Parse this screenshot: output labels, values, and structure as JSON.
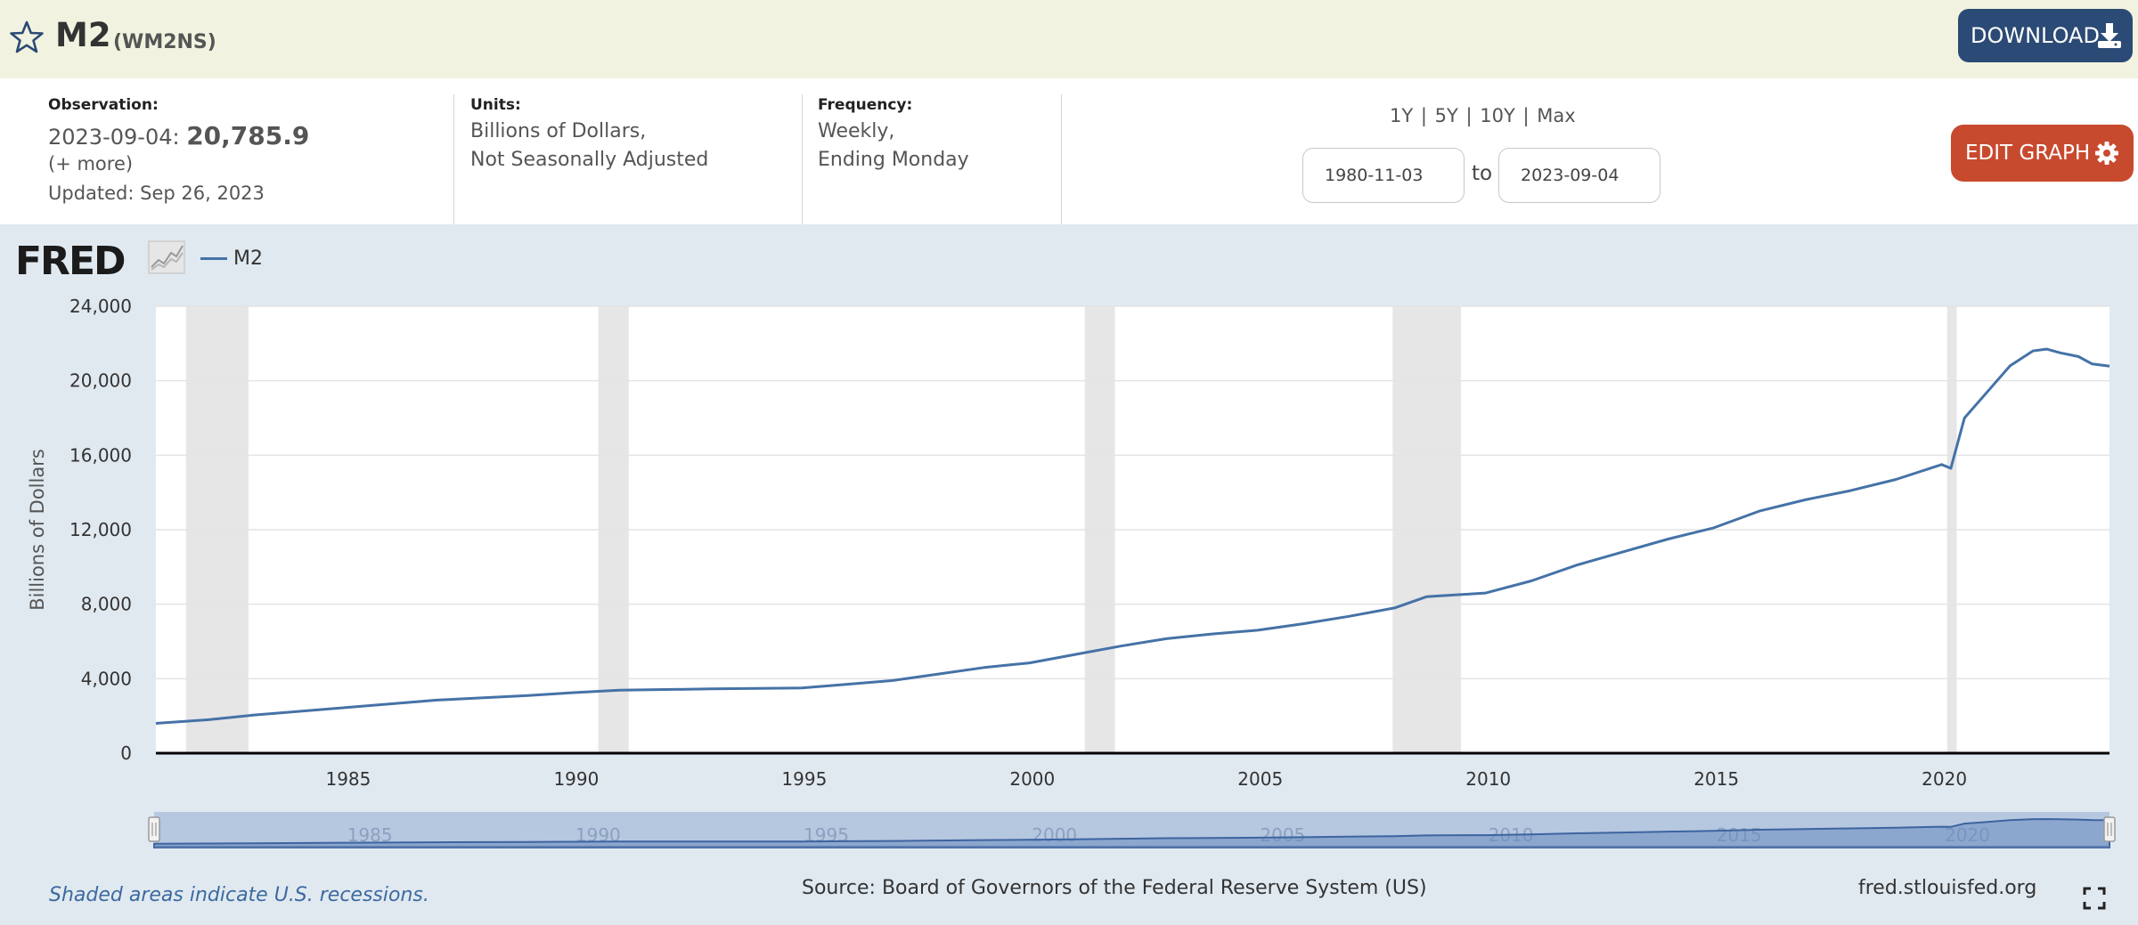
{
  "header": {
    "title": "M2",
    "series_id": "(WM2NS)",
    "download_label": "DOWNLOAD"
  },
  "info": {
    "observation_label": "Observation:",
    "observation_date": "2023-09-04:",
    "observation_value": "20,785.9",
    "more_label": "(+ more)",
    "updated": "Updated: Sep 26, 2023",
    "units_label": "Units:",
    "units_line1": "Billions of Dollars,",
    "units_line2": "Not Seasonally Adjusted",
    "frequency_label": "Frequency:",
    "frequency_line1": "Weekly,",
    "frequency_line2": "Ending Monday"
  },
  "controls": {
    "ranges": [
      "1Y",
      "5Y",
      "10Y",
      "Max"
    ],
    "start_date": "1980-11-03",
    "to_label": "to",
    "end_date": "2023-09-04",
    "edit_label": "EDIT GRAPH"
  },
  "legend": {
    "logo_text": "FRED",
    "series_name": "M2",
    "series_color": "#4572a7"
  },
  "footer": {
    "shade_note": "Shaded areas indicate U.S. recessions.",
    "source": "Source: Board of Governors of the Federal Reserve System (US)",
    "site": "fred.stlouisfed.org"
  },
  "chart_data": {
    "type": "line",
    "ylabel": "Billions of Dollars",
    "xlim": [
      1980.84,
      2023.68
    ],
    "ylim": [
      0,
      24000
    ],
    "yticks": [
      0,
      4000,
      8000,
      12000,
      16000,
      20000,
      24000
    ],
    "ytick_labels": [
      "0",
      "4,000",
      "8,000",
      "12,000",
      "16,000",
      "20,000",
      "24,000"
    ],
    "xticks": [
      1985,
      1990,
      1995,
      2000,
      2005,
      2010,
      2015,
      2020
    ],
    "grid": true,
    "recessions": [
      [
        1981.5,
        1982.87
      ],
      [
        1990.54,
        1991.21
      ],
      [
        2001.21,
        2001.87
      ],
      [
        2007.96,
        2009.46
      ],
      [
        2020.12,
        2020.33
      ]
    ],
    "series": [
      {
        "name": "M2",
        "x": [
          1980.84,
          1982.0,
          1983.0,
          1985.0,
          1987.0,
          1989.0,
          1990.0,
          1991.0,
          1993.0,
          1995.0,
          1996.0,
          1997.0,
          1998.0,
          1999.0,
          2000.0,
          2001.0,
          2002.0,
          2003.0,
          2004.0,
          2005.0,
          2006.0,
          2007.0,
          2008.0,
          2008.7,
          2009.0,
          2010.0,
          2011.0,
          2012.0,
          2013.0,
          2014.0,
          2015.0,
          2016.0,
          2017.0,
          2018.0,
          2019.0,
          2020.0,
          2020.2,
          2020.5,
          2021.0,
          2021.5,
          2022.0,
          2022.3,
          2022.6,
          2023.0,
          2023.3,
          2023.68
        ],
        "y": [
          1600,
          1800,
          2050,
          2450,
          2850,
          3100,
          3250,
          3380,
          3450,
          3500,
          3700,
          3900,
          4250,
          4600,
          4850,
          5300,
          5750,
          6150,
          6400,
          6600,
          6950,
          7350,
          7800,
          8400,
          8450,
          8600,
          9250,
          10100,
          10800,
          11500,
          12100,
          13000,
          13600,
          14100,
          14700,
          15500,
          15300,
          18000,
          19400,
          20800,
          21600,
          21700,
          21500,
          21300,
          20900,
          20785.9
        ]
      }
    ]
  }
}
